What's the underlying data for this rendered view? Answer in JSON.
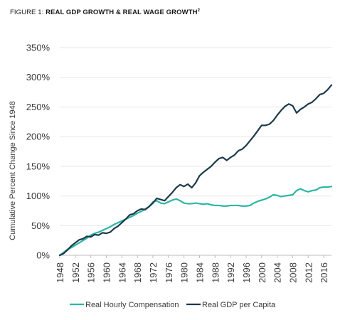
{
  "figure": {
    "label_prefix": "FIGURE 1: ",
    "title": "REAL GDP GROWTH & REAL WAGE GROWTH",
    "footnote": "2"
  },
  "chart_data": {
    "type": "line",
    "title": "REAL GDP GROWTH & REAL WAGE GROWTH",
    "xlabel": "",
    "ylabel": "Cumulative Percent Change Since 1948",
    "xlim": [
      1948,
      2018
    ],
    "ylim": [
      0,
      350
    ],
    "x_ticks": [
      1948,
      1952,
      1956,
      1960,
      1964,
      1968,
      1972,
      1976,
      1980,
      1984,
      1988,
      1992,
      1996,
      2000,
      2004,
      2008,
      2012,
      2016
    ],
    "y_ticks": [
      0,
      50,
      100,
      150,
      200,
      250,
      300,
      350
    ],
    "y_tick_labels": [
      "0%",
      "50%",
      "100%",
      "150%",
      "200%",
      "250%",
      "300%",
      "350%"
    ],
    "grid": "horizontal",
    "legend_position": "bottom",
    "series": [
      {
        "name": "Real Hourly Compensation",
        "color": "#2bb6a3",
        "values": [
          {
            "x": 1948,
            "y": 0
          },
          {
            "x": 1949,
            "y": 5
          },
          {
            "x": 1950,
            "y": 10
          },
          {
            "x": 1951,
            "y": 13
          },
          {
            "x": 1952,
            "y": 17
          },
          {
            "x": 1953,
            "y": 21
          },
          {
            "x": 1954,
            "y": 25
          },
          {
            "x": 1955,
            "y": 29
          },
          {
            "x": 1956,
            "y": 34
          },
          {
            "x": 1957,
            "y": 37
          },
          {
            "x": 1958,
            "y": 39
          },
          {
            "x": 1959,
            "y": 42
          },
          {
            "x": 1960,
            "y": 45
          },
          {
            "x": 1961,
            "y": 48
          },
          {
            "x": 1962,
            "y": 52
          },
          {
            "x": 1963,
            "y": 55
          },
          {
            "x": 1964,
            "y": 58
          },
          {
            "x": 1965,
            "y": 61
          },
          {
            "x": 1966,
            "y": 64
          },
          {
            "x": 1967,
            "y": 67
          },
          {
            "x": 1968,
            "y": 71
          },
          {
            "x": 1969,
            "y": 74
          },
          {
            "x": 1970,
            "y": 78
          },
          {
            "x": 1971,
            "y": 82
          },
          {
            "x": 1972,
            "y": 90
          },
          {
            "x": 1973,
            "y": 92
          },
          {
            "x": 1974,
            "y": 88
          },
          {
            "x": 1975,
            "y": 87
          },
          {
            "x": 1976,
            "y": 90
          },
          {
            "x": 1977,
            "y": 93
          },
          {
            "x": 1978,
            "y": 95
          },
          {
            "x": 1979,
            "y": 92
          },
          {
            "x": 1980,
            "y": 88
          },
          {
            "x": 1981,
            "y": 87
          },
          {
            "x": 1982,
            "y": 87
          },
          {
            "x": 1983,
            "y": 88
          },
          {
            "x": 1984,
            "y": 87
          },
          {
            "x": 1985,
            "y": 86
          },
          {
            "x": 1986,
            "y": 87
          },
          {
            "x": 1987,
            "y": 85
          },
          {
            "x": 1988,
            "y": 84
          },
          {
            "x": 1989,
            "y": 84
          },
          {
            "x": 1990,
            "y": 83
          },
          {
            "x": 1991,
            "y": 83
          },
          {
            "x": 1992,
            "y": 84
          },
          {
            "x": 1993,
            "y": 84
          },
          {
            "x": 1994,
            "y": 84
          },
          {
            "x": 1995,
            "y": 83
          },
          {
            "x": 1996,
            "y": 83
          },
          {
            "x": 1997,
            "y": 84
          },
          {
            "x": 1998,
            "y": 88
          },
          {
            "x": 1999,
            "y": 91
          },
          {
            "x": 2000,
            "y": 93
          },
          {
            "x": 2001,
            "y": 95
          },
          {
            "x": 2002,
            "y": 98
          },
          {
            "x": 2003,
            "y": 102
          },
          {
            "x": 2004,
            "y": 101
          },
          {
            "x": 2005,
            "y": 99
          },
          {
            "x": 2006,
            "y": 100
          },
          {
            "x": 2007,
            "y": 101
          },
          {
            "x": 2008,
            "y": 102
          },
          {
            "x": 2009,
            "y": 109
          },
          {
            "x": 2010,
            "y": 112
          },
          {
            "x": 2011,
            "y": 109
          },
          {
            "x": 2012,
            "y": 107
          },
          {
            "x": 2013,
            "y": 109
          },
          {
            "x": 2014,
            "y": 110
          },
          {
            "x": 2015,
            "y": 114
          },
          {
            "x": 2016,
            "y": 115
          },
          {
            "x": 2017,
            "y": 115
          },
          {
            "x": 2018,
            "y": 116
          }
        ]
      },
      {
        "name": "Real GDP per Capita",
        "color": "#1c3a4a",
        "values": [
          {
            "x": 1948,
            "y": 0
          },
          {
            "x": 1949,
            "y": 3
          },
          {
            "x": 1950,
            "y": 9
          },
          {
            "x": 1951,
            "y": 16
          },
          {
            "x": 1952,
            "y": 21
          },
          {
            "x": 1953,
            "y": 26
          },
          {
            "x": 1954,
            "y": 28
          },
          {
            "x": 1955,
            "y": 32
          },
          {
            "x": 1956,
            "y": 31
          },
          {
            "x": 1957,
            "y": 35
          },
          {
            "x": 1958,
            "y": 34
          },
          {
            "x": 1959,
            "y": 38
          },
          {
            "x": 1960,
            "y": 37
          },
          {
            "x": 1961,
            "y": 39
          },
          {
            "x": 1962,
            "y": 45
          },
          {
            "x": 1963,
            "y": 49
          },
          {
            "x": 1964,
            "y": 55
          },
          {
            "x": 1965,
            "y": 61
          },
          {
            "x": 1966,
            "y": 68
          },
          {
            "x": 1967,
            "y": 70
          },
          {
            "x": 1968,
            "y": 75
          },
          {
            "x": 1969,
            "y": 78
          },
          {
            "x": 1970,
            "y": 77
          },
          {
            "x": 1971,
            "y": 82
          },
          {
            "x": 1972,
            "y": 88
          },
          {
            "x": 1973,
            "y": 96
          },
          {
            "x": 1974,
            "y": 94
          },
          {
            "x": 1975,
            "y": 92
          },
          {
            "x": 1976,
            "y": 99
          },
          {
            "x": 1977,
            "y": 106
          },
          {
            "x": 1978,
            "y": 114
          },
          {
            "x": 1979,
            "y": 119
          },
          {
            "x": 1980,
            "y": 116
          },
          {
            "x": 1981,
            "y": 120
          },
          {
            "x": 1982,
            "y": 114
          },
          {
            "x": 1983,
            "y": 122
          },
          {
            "x": 1984,
            "y": 134
          },
          {
            "x": 1985,
            "y": 140
          },
          {
            "x": 1986,
            "y": 145
          },
          {
            "x": 1987,
            "y": 150
          },
          {
            "x": 1988,
            "y": 157
          },
          {
            "x": 1989,
            "y": 163
          },
          {
            "x": 1990,
            "y": 165
          },
          {
            "x": 1991,
            "y": 160
          },
          {
            "x": 1992,
            "y": 165
          },
          {
            "x": 1993,
            "y": 169
          },
          {
            "x": 1994,
            "y": 176
          },
          {
            "x": 1995,
            "y": 179
          },
          {
            "x": 1996,
            "y": 185
          },
          {
            "x": 1997,
            "y": 193
          },
          {
            "x": 1998,
            "y": 201
          },
          {
            "x": 1999,
            "y": 210
          },
          {
            "x": 2000,
            "y": 219
          },
          {
            "x": 2001,
            "y": 219
          },
          {
            "x": 2002,
            "y": 221
          },
          {
            "x": 2003,
            "y": 227
          },
          {
            "x": 2004,
            "y": 236
          },
          {
            "x": 2005,
            "y": 244
          },
          {
            "x": 2006,
            "y": 251
          },
          {
            "x": 2007,
            "y": 255
          },
          {
            "x": 2008,
            "y": 252
          },
          {
            "x": 2009,
            "y": 240
          },
          {
            "x": 2010,
            "y": 246
          },
          {
            "x": 2011,
            "y": 250
          },
          {
            "x": 2012,
            "y": 255
          },
          {
            "x": 2013,
            "y": 258
          },
          {
            "x": 2014,
            "y": 264
          },
          {
            "x": 2015,
            "y": 271
          },
          {
            "x": 2016,
            "y": 273
          },
          {
            "x": 2017,
            "y": 279
          },
          {
            "x": 2018,
            "y": 287
          }
        ]
      }
    ]
  }
}
